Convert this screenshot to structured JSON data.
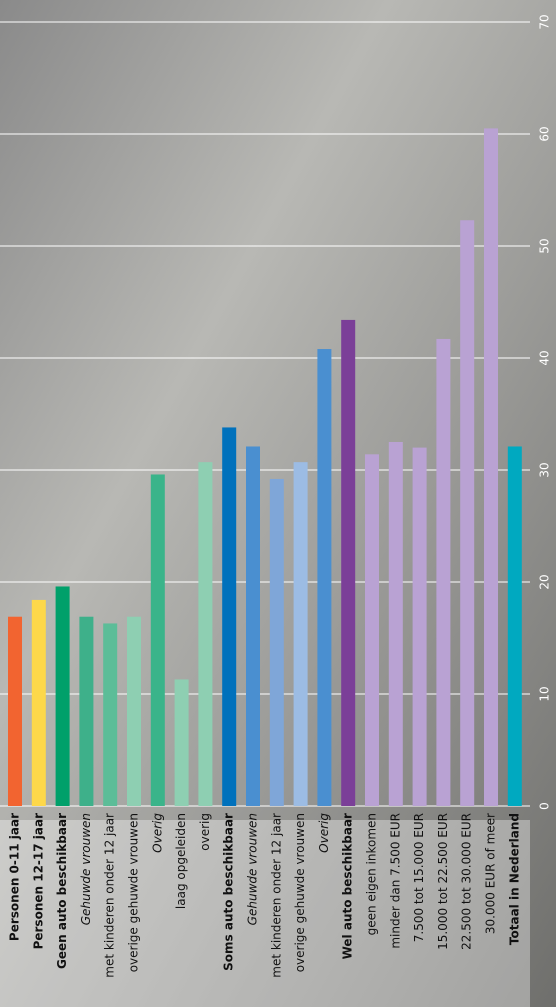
{
  "chart_data": {
    "type": "bar",
    "categories": [
      "Personen 0-11 jaar",
      "Personen 12-17 jaar",
      "Geen auto beschikbaar",
      "Gehuwde vrouwen",
      "met kinderen onder 12 jaar",
      "overige gehuwde vrouwen",
      "Overig",
      "laag opgeleiden",
      "overig",
      "Soms auto beschikbaar",
      "Gehuwde vrouwen",
      "met kinderen onder 12 jaar",
      "overige gehuwde vrouwen",
      "Overig",
      "Wel auto beschikbaar",
      "geen eigen inkomen",
      "minder dan 7.500 EUR",
      "7.500 tot 15.000 EUR",
      "15.000 tot 22.500 EUR",
      "22.500 tot 30.000 EUR",
      "30.000 EUR of meer",
      "Totaal in Nederland"
    ],
    "values": [
      16.9,
      18.4,
      19.6,
      16.9,
      16.3,
      16.9,
      29.6,
      11.3,
      30.7,
      33.8,
      32.1,
      29.2,
      30.7,
      40.8,
      43.4,
      31.4,
      32.5,
      32.0,
      41.7,
      52.3,
      60.5,
      32.1
    ],
    "colors": [
      "#f26430",
      "#fdd84a",
      "#00a06a",
      "#3eb08a",
      "#5cbd98",
      "#8ecfb2",
      "#3ab48a",
      "#8ecfb2",
      "#8ecfb2",
      "#0071bc",
      "#4a8fd0",
      "#7fa6d8",
      "#9cbce4",
      "#4a8fd0",
      "#7b3f98",
      "#b9a2d3",
      "#b9a2d3",
      "#b9a2d3",
      "#b9a2d3",
      "#b9a2d3",
      "#b9a2d3",
      "#00a9c0"
    ],
    "label_styles": [
      "bold",
      "bold",
      "bold",
      "italic",
      "normal",
      "normal",
      "italic",
      "normal",
      "normal",
      "bold",
      "italic",
      "normal",
      "normal",
      "italic",
      "bold",
      "normal",
      "normal",
      "normal",
      "normal",
      "normal",
      "normal",
      "bold"
    ],
    "ylim": [
      0,
      70
    ],
    "yticks": [
      0,
      10,
      20,
      30,
      40,
      50,
      60,
      70
    ],
    "grid": true
  }
}
